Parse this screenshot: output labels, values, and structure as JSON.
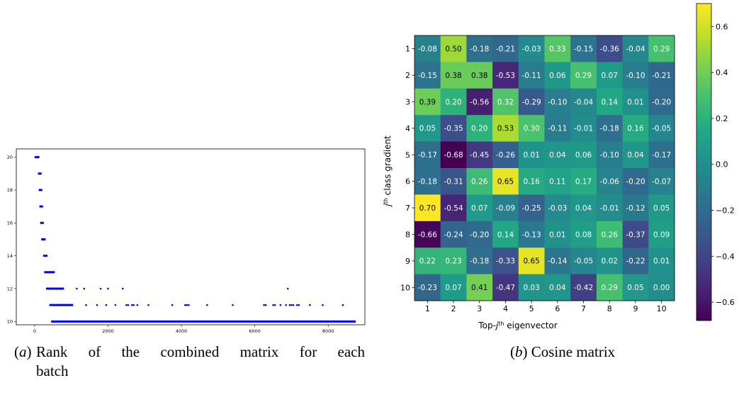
{
  "captions": {
    "a": {
      "label_open": "(",
      "label_letter": "a",
      "label_close": ")",
      "text_line1": "Rank of the combined matrix for each",
      "text_line2": "batch"
    },
    "b": {
      "label_open": "(",
      "label_letter": "b",
      "label_close": ")",
      "text": "Cosine matrix"
    }
  },
  "chart_data": [
    {
      "type": "scatter",
      "title": "",
      "xlabel": "",
      "ylabel": "",
      "xlim": [
        -500,
        9000
      ],
      "ylim": [
        9.8,
        20.5
      ],
      "xticks": [
        0,
        2000,
        4000,
        6000,
        8000
      ],
      "yticks": [
        10,
        12,
        14,
        16,
        18,
        20
      ],
      "marker_color": "#0000ff",
      "series": [
        {
          "points_dense": [
            {
              "y": 20,
              "x_from": 0,
              "x_to": 130
            },
            {
              "y": 19,
              "x_from": 90,
              "x_to": 190
            },
            {
              "y": 18,
              "x_from": 110,
              "x_to": 210
            },
            {
              "y": 17,
              "x_from": 130,
              "x_to": 230
            },
            {
              "y": 16,
              "x_from": 150,
              "x_to": 250
            },
            {
              "y": 15,
              "x_from": 180,
              "x_to": 300
            },
            {
              "y": 14,
              "x_from": 230,
              "x_to": 350
            },
            {
              "y": 13,
              "x_from": 260,
              "x_to": 550
            },
            {
              "y": 12,
              "x_from": 310,
              "x_to": 800
            },
            {
              "y": 11,
              "x_from": 400,
              "x_to": 1050
            },
            {
              "y": 10,
              "x_from": 450,
              "x_to": 8750
            }
          ],
          "points_sparse": [
            {
              "y": 12,
              "x": [
                1150,
                1350,
                1800,
                2000,
                2400,
                6900
              ]
            },
            {
              "y": 11,
              "x": [
                1400,
                1700,
                1950,
                2200,
                2500,
                2550,
                2650,
                2700,
                2800,
                3100,
                3750,
                4100,
                4150,
                4200,
                4700,
                5400,
                6250,
                6300,
                6500,
                6550,
                6700,
                6850,
                6950,
                7000,
                7050,
                7150,
                7200,
                7500,
                7850,
                8400
              ]
            }
          ]
        }
      ]
    },
    {
      "type": "heatmap",
      "title": "",
      "xlabel": "Top-j^th eigenvector",
      "xlabel_prefix": "Top-",
      "xlabel_var": "j",
      "xlabel_sup": "th",
      "xlabel_suffix": " eigenvector",
      "ylabel": "j^th class gradient",
      "ylabel_var": "j",
      "ylabel_sup": "th",
      "ylabel_suffix": " class gradient",
      "x_categories": [
        "1",
        "2",
        "3",
        "4",
        "5",
        "6",
        "7",
        "8",
        "9",
        "10"
      ],
      "y_categories": [
        "1",
        "2",
        "3",
        "4",
        "5",
        "6",
        "7",
        "8",
        "9",
        "10"
      ],
      "colormap": "viridis",
      "vmin": -0.68,
      "vmax": 0.7,
      "colorbar_ticks": [
        0.6,
        0.4,
        0.2,
        0.0,
        -0.2,
        -0.4,
        -0.6
      ],
      "colorbar_tick_labels": [
        "0.6",
        "0.4",
        "0.2",
        "0.0",
        "−0.2",
        "−0.4",
        "−0.6"
      ],
      "values": [
        [
          -0.08,
          0.5,
          -0.18,
          -0.21,
          -0.03,
          0.33,
          -0.15,
          -0.36,
          -0.04,
          0.29
        ],
        [
          -0.15,
          0.38,
          0.38,
          -0.53,
          -0.11,
          0.06,
          0.29,
          0.07,
          -0.1,
          -0.21
        ],
        [
          0.39,
          0.2,
          -0.56,
          0.32,
          -0.29,
          -0.1,
          -0.04,
          0.14,
          0.01,
          -0.2
        ],
        [
          0.05,
          -0.35,
          0.2,
          0.53,
          0.3,
          -0.11,
          -0.01,
          -0.18,
          0.16,
          -0.05
        ],
        [
          -0.17,
          -0.68,
          -0.45,
          -0.26,
          0.01,
          0.04,
          0.06,
          -0.1,
          0.04,
          -0.17
        ],
        [
          -0.18,
          -0.31,
          0.26,
          0.65,
          0.16,
          0.11,
          0.17,
          -0.06,
          -0.2,
          -0.07
        ],
        [
          0.7,
          -0.54,
          0.07,
          -0.09,
          -0.25,
          -0.03,
          0.04,
          -0.01,
          -0.12,
          0.05
        ],
        [
          -0.66,
          -0.24,
          -0.2,
          0.14,
          -0.13,
          0.01,
          0.08,
          0.26,
          -0.37,
          0.09
        ],
        [
          0.22,
          0.23,
          -0.18,
          -0.33,
          0.65,
          -0.14,
          -0.05,
          0.02,
          -0.22,
          0.01
        ],
        [
          -0.23,
          0.07,
          0.41,
          -0.47,
          0.03,
          0.04,
          -0.42,
          0.29,
          0.05,
          0.0
        ]
      ],
      "cell_labels": [
        [
          "-0.08",
          "0.50",
          "-0.18",
          "-0.21",
          "-0.03",
          "0.33",
          "-0.15",
          "-0.36",
          "-0.04",
          "0.29"
        ],
        [
          "-0.15",
          "0.38",
          "0.38",
          "-0.53",
          "-0.11",
          "0.06",
          "0.29",
          "0.07",
          "-0.10",
          "-0.21"
        ],
        [
          "0.39",
          "0.20",
          "-0.56",
          "0.32",
          "-0.29",
          "-0.10",
          "-0.04",
          "0.14",
          "0.01",
          "-0.20"
        ],
        [
          "0.05",
          "-0.35",
          "0.20",
          "0.53",
          "0.30",
          "-0.11",
          "-0.01",
          "-0.18",
          "0.16",
          "-0.05"
        ],
        [
          "-0.17",
          "-0.68",
          "-0.45",
          "-0.26",
          "0.01",
          "0.04",
          "0.06",
          "-0.10",
          "0.04",
          "-0.17"
        ],
        [
          "-0.18",
          "-0.31",
          "0.26",
          "0.65",
          "0.16",
          "0.11",
          "0.17",
          "-0.06",
          "-0.20",
          "-0.07"
        ],
        [
          "0.70",
          "-0.54",
          "0.07",
          "-0.09",
          "-0.25",
          "-0.03",
          "0.04",
          "-0.01",
          "-0.12",
          "0.05"
        ],
        [
          "-0.66",
          "-0.24",
          "-0.20",
          "0.14",
          "-0.13",
          "0.01",
          "0.08",
          "0.26",
          "-0.37",
          "0.09"
        ],
        [
          "0.22",
          "0.23",
          "-0.18",
          "-0.33",
          "0.65",
          "-0.14",
          "-0.05",
          "0.02",
          "-0.22",
          "0.01"
        ],
        [
          "-0.23",
          "0.07",
          "0.41",
          "-0.47",
          "0.03",
          "0.04",
          "-0.42",
          "0.29",
          "0.05",
          "0.00"
        ]
      ]
    }
  ]
}
